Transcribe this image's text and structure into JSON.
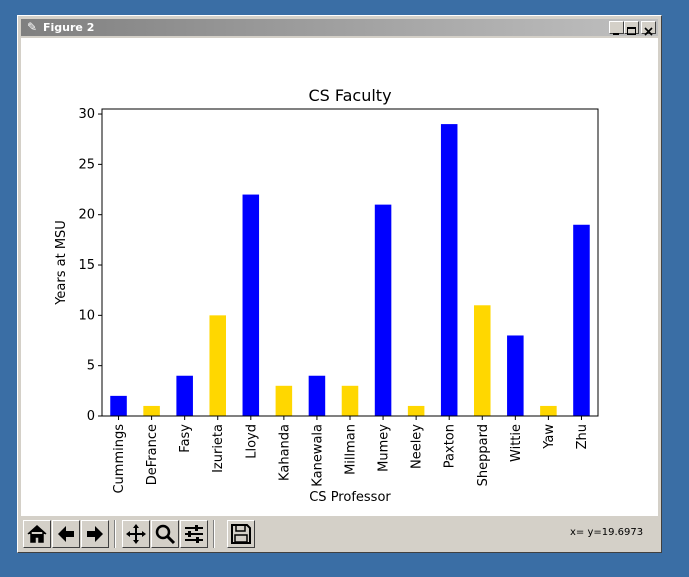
{
  "window": {
    "title": "Figure 2",
    "minimize_glyph": "_",
    "maximize_glyph": "□",
    "close_glyph": "×"
  },
  "chart_data": {
    "type": "bar",
    "title": "CS Faculty",
    "xlabel": "CS Professor",
    "ylabel": "Years at MSU",
    "ylim": [
      0,
      30.5
    ],
    "yticks": [
      0,
      5,
      10,
      15,
      20,
      25,
      30
    ],
    "grid": false,
    "categories": [
      "Cummings",
      "DeFrance",
      "Fasy",
      "Izurieta",
      "Lloyd",
      "Kahanda",
      "Kanewala",
      "Millman",
      "Mumey",
      "Neeley",
      "Paxton",
      "Sheppard",
      "Wittie",
      "Yaw",
      "Zhu"
    ],
    "values": [
      2,
      1,
      4,
      10,
      22,
      3,
      4,
      3,
      21,
      1,
      29,
      11,
      8,
      1,
      19
    ],
    "colors": [
      "#0000ff",
      "#ffd700",
      "#0000ff",
      "#ffd700",
      "#0000ff",
      "#ffd700",
      "#0000ff",
      "#ffd700",
      "#0000ff",
      "#ffd700",
      "#0000ff",
      "#ffd700",
      "#0000ff",
      "#ffd700",
      "#0000ff"
    ]
  },
  "toolbar": {
    "buttons": [
      "home-icon",
      "back-icon",
      "forward-icon",
      "pan-icon",
      "zoom-icon",
      "configure-icon",
      "save-icon"
    ],
    "coords_text": "x= y=19.6973"
  }
}
